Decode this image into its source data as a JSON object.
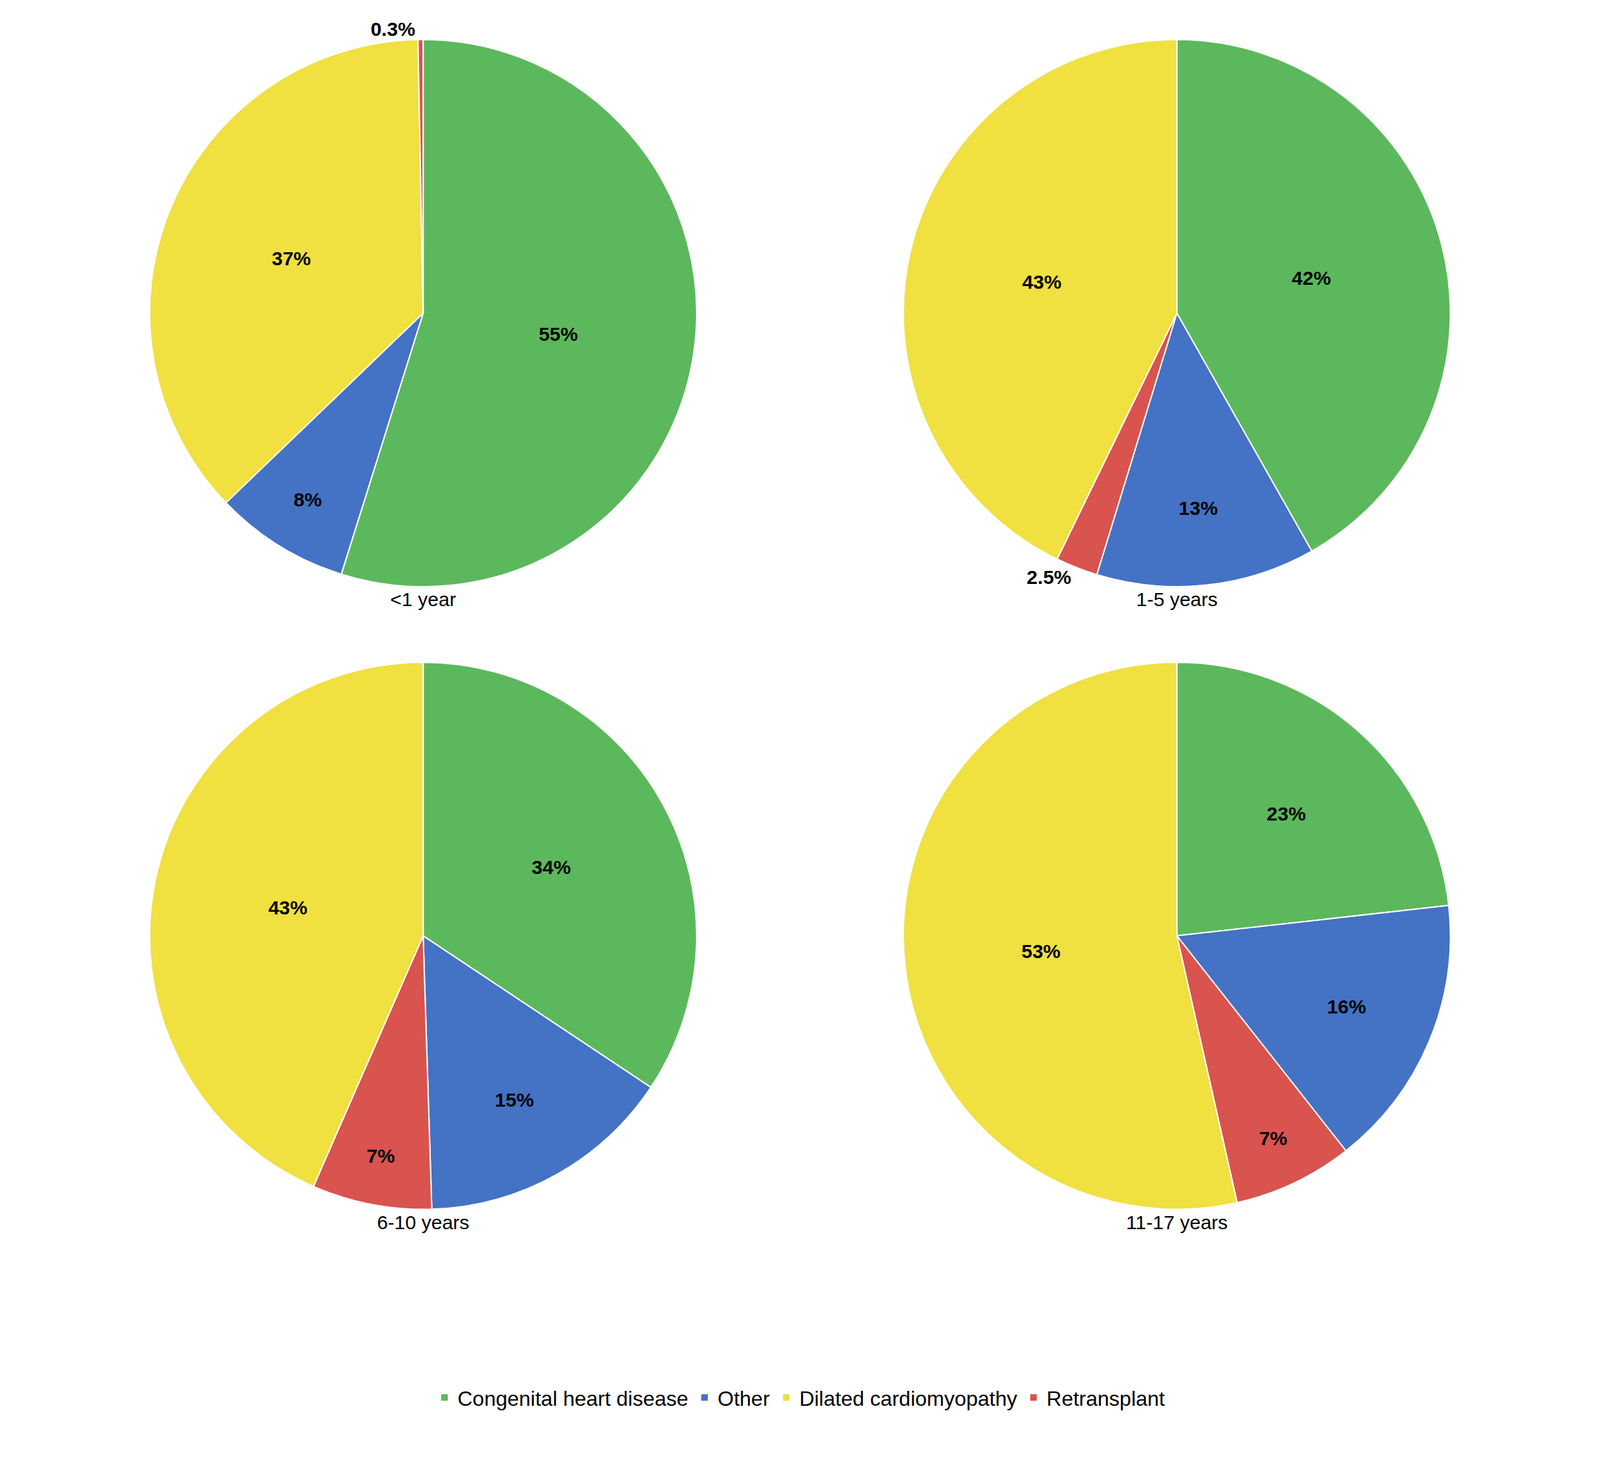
{
  "chart_data": [
    {
      "type": "pie",
      "title": "<1 year",
      "categories": [
        "Congenital heart disease",
        "Other",
        "Dilated cardiomyopathy",
        "Retransplant"
      ],
      "values": [
        55,
        8,
        37,
        0.3
      ],
      "value_labels": [
        "55%",
        "8%",
        "37%",
        "0.3%"
      ],
      "colors": [
        "#5cb85c",
        "#4472c4",
        "#f0e040",
        "#d9534f"
      ],
      "data_labels": true,
      "legend": "bottom"
    },
    {
      "type": "pie",
      "title": "1-5 years",
      "categories": [
        "Congenital heart disease",
        "Other",
        "Retransplant",
        "Dilated cardiomyopathy"
      ],
      "values": [
        42,
        13,
        2.5,
        43
      ],
      "value_labels": [
        "42%",
        "13%",
        "2.5%",
        "43%"
      ],
      "colors": [
        "#5cb85c",
        "#4472c4",
        "#d9534f",
        "#f0e040"
      ],
      "data_labels": true,
      "legend": "bottom"
    },
    {
      "type": "pie",
      "title": "6-10 years",
      "categories": [
        "Congenital heart disease",
        "Other",
        "Retransplant",
        "Dilated cardiomyopathy"
      ],
      "values": [
        34,
        15,
        7,
        43
      ],
      "value_labels": [
        "34%",
        "15%",
        "7%",
        "43%"
      ],
      "colors": [
        "#5cb85c",
        "#4472c4",
        "#d9534f",
        "#f0e040"
      ],
      "data_labels": true,
      "legend": "bottom"
    },
    {
      "type": "pie",
      "title": "11-17 years",
      "categories": [
        "Congenital heart disease",
        "Other",
        "Retransplant",
        "Dilated cardiomyopathy"
      ],
      "values": [
        23,
        16,
        7,
        53
      ],
      "value_labels": [
        "23%",
        "16%",
        "7%",
        "53%"
      ],
      "colors": [
        "#5cb85c",
        "#4472c4",
        "#d9534f",
        "#f0e040"
      ],
      "data_labels": true,
      "legend": "bottom"
    }
  ]
}
